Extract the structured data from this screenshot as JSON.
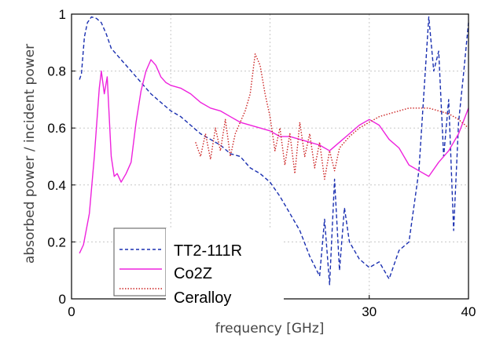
{
  "chart_data": {
    "type": "line",
    "title": "",
    "xlabel": "frequency [GHz]",
    "ylabel": "absorbed power / incident power",
    "xlim": [
      0,
      40
    ],
    "ylim": [
      0,
      1
    ],
    "x_ticks": [
      "0",
      "10",
      "20",
      "30",
      "40"
    ],
    "x_tick_values": [
      0,
      10,
      20,
      30,
      40
    ],
    "visible_x_tick_labels": [
      "0",
      "30",
      "40"
    ],
    "y_ticks": [
      "0",
      "0.2",
      "0.4",
      "0.6",
      "0.8",
      "1"
    ],
    "y_tick_values": [
      0,
      0.2,
      0.4,
      0.6,
      0.8,
      1
    ],
    "grid": true,
    "legend_position": "bottom-left",
    "series": [
      {
        "name": "TT2-111R",
        "color": "#1a2fb0",
        "style": "dashed",
        "x": [
          0.8,
          1.0,
          1.3,
          1.6,
          2.0,
          2.5,
          3.0,
          3.5,
          4.0,
          5,
          6,
          7,
          8,
          9,
          10,
          11,
          12,
          13,
          14,
          15,
          16,
          17,
          18,
          19,
          20,
          21,
          22,
          23,
          24,
          25,
          25.5,
          26,
          26.5,
          27,
          27.5,
          28,
          29,
          30,
          31,
          32,
          33,
          34,
          35,
          35.5,
          36,
          36.5,
          37,
          37.5,
          38,
          38.5,
          39,
          39.5,
          40
        ],
        "y": [
          0.77,
          0.79,
          0.92,
          0.97,
          0.99,
          0.985,
          0.97,
          0.93,
          0.88,
          0.84,
          0.8,
          0.76,
          0.72,
          0.69,
          0.66,
          0.64,
          0.61,
          0.58,
          0.56,
          0.54,
          0.51,
          0.5,
          0.46,
          0.44,
          0.41,
          0.36,
          0.3,
          0.24,
          0.15,
          0.08,
          0.28,
          0.05,
          0.42,
          0.1,
          0.32,
          0.2,
          0.14,
          0.11,
          0.13,
          0.07,
          0.17,
          0.2,
          0.45,
          0.72,
          0.99,
          0.8,
          0.87,
          0.5,
          0.7,
          0.24,
          0.62,
          0.79,
          0.97
        ]
      },
      {
        "name": "Co2Z",
        "color": "#ee22dd",
        "style": "solid",
        "x": [
          0.8,
          1.2,
          1.8,
          2.3,
          2.8,
          3.0,
          3.3,
          3.6,
          4.0,
          4.3,
          4.6,
          5.0,
          5.5,
          6.0,
          6.5,
          7.0,
          7.5,
          8.0,
          8.5,
          9.0,
          9.5,
          10,
          11,
          12,
          13,
          14,
          15,
          16,
          17,
          18,
          19,
          20,
          21,
          22,
          23,
          24,
          25,
          26,
          27,
          28,
          29,
          30,
          31,
          32,
          33,
          34,
          35,
          36,
          37,
          38,
          39,
          40
        ],
        "y": [
          0.16,
          0.19,
          0.3,
          0.5,
          0.74,
          0.8,
          0.72,
          0.78,
          0.5,
          0.43,
          0.44,
          0.41,
          0.44,
          0.48,
          0.62,
          0.73,
          0.8,
          0.84,
          0.82,
          0.78,
          0.76,
          0.75,
          0.74,
          0.72,
          0.69,
          0.67,
          0.66,
          0.64,
          0.62,
          0.61,
          0.6,
          0.59,
          0.57,
          0.57,
          0.56,
          0.55,
          0.54,
          0.52,
          0.55,
          0.58,
          0.61,
          0.63,
          0.61,
          0.56,
          0.53,
          0.47,
          0.45,
          0.43,
          0.48,
          0.52,
          0.58,
          0.67
        ]
      },
      {
        "name": "Ceralloy",
        "color": "#cc2222",
        "style": "dotted",
        "x": [
          12.5,
          13.0,
          13.5,
          14.0,
          14.5,
          15.0,
          15.5,
          16.0,
          16.5,
          17.0,
          17.5,
          18.0,
          18.5,
          19.0,
          19.5,
          20.0,
          20.5,
          21.0,
          21.5,
          22.0,
          22.5,
          23.0,
          23.5,
          24.0,
          24.5,
          25.0,
          25.5,
          26.0,
          26.5,
          27,
          28,
          29,
          30,
          31,
          32,
          33,
          34,
          35,
          36,
          37,
          38,
          39,
          40
        ],
        "y": [
          0.55,
          0.5,
          0.58,
          0.49,
          0.6,
          0.52,
          0.63,
          0.5,
          0.58,
          0.62,
          0.66,
          0.72,
          0.86,
          0.82,
          0.72,
          0.64,
          0.52,
          0.6,
          0.47,
          0.58,
          0.44,
          0.62,
          0.5,
          0.58,
          0.46,
          0.55,
          0.42,
          0.52,
          0.45,
          0.53,
          0.57,
          0.6,
          0.62,
          0.64,
          0.65,
          0.66,
          0.67,
          0.67,
          0.67,
          0.66,
          0.65,
          0.63,
          0.6
        ]
      }
    ]
  }
}
